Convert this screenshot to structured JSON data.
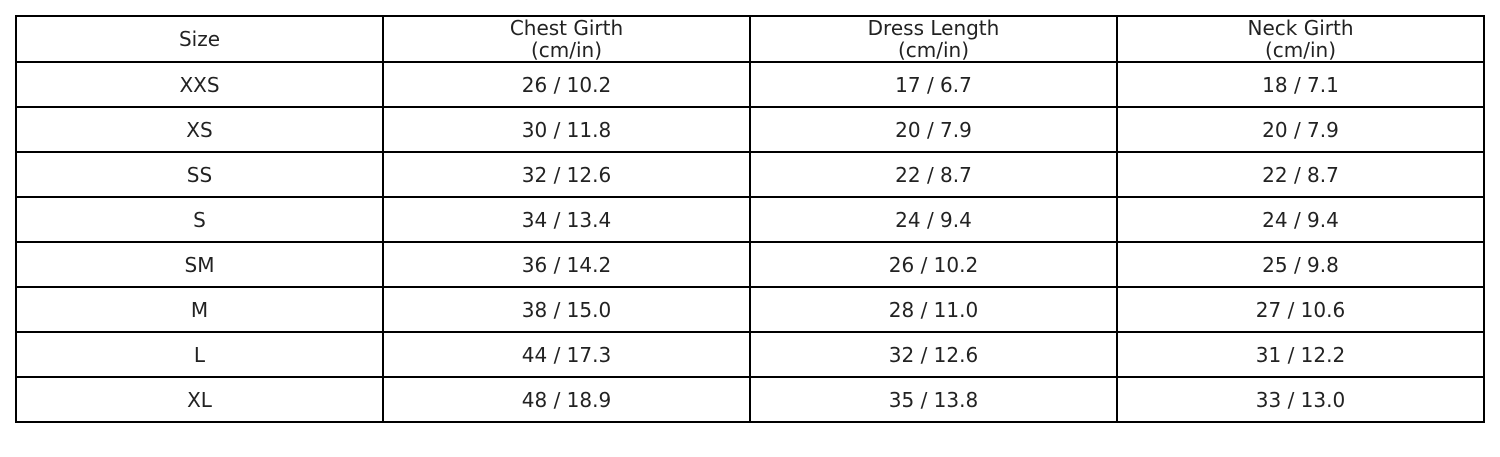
{
  "table": {
    "header": [
      "Size",
      "Chest Girth\n(cm/in)",
      "Dress Length\n(cm/in)",
      "Neck Girth\n(cm/in)"
    ],
    "rows": [
      [
        "XXS",
        "26 / 10.2",
        "17 / 6.7",
        "18 / 7.1"
      ],
      [
        "XS",
        "30 / 11.8",
        "20 / 7.9",
        "20 / 7.9"
      ],
      [
        "SS",
        "32 / 12.6",
        "22 / 8.7",
        "22 / 8.7"
      ],
      [
        "S",
        "34 / 13.4",
        "24 / 9.4",
        "24 / 9.4"
      ],
      [
        "SM",
        "36 / 14.2",
        "26 / 10.2",
        "25 / 9.8"
      ],
      [
        "M",
        "38 / 15.0",
        "28 / 11.0",
        "27 / 10.6"
      ],
      [
        "L",
        "44 / 17.3",
        "32 / 12.6",
        "31 / 12.2"
      ],
      [
        "XL",
        "48 / 18.9",
        "35 / 13.8",
        "33 / 13.0"
      ]
    ]
  }
}
